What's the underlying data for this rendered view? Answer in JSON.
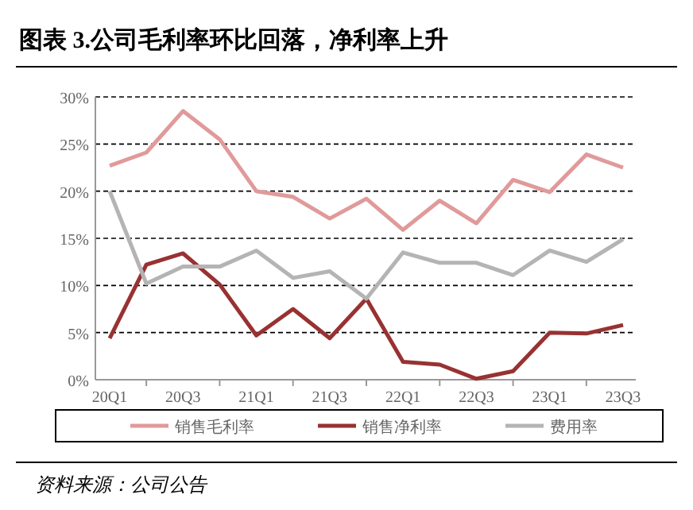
{
  "chart_data": {
    "type": "line",
    "title": "图表 3.公司毛利率环比回落，净利率上升",
    "categories": [
      "20Q1",
      null,
      "20Q3",
      null,
      "21Q1",
      null,
      "21Q3",
      null,
      "22Q1",
      null,
      "22Q3",
      null,
      "23Q1",
      null,
      "23Q3"
    ],
    "series": [
      {
        "name": "销售毛利率",
        "color": "#e09a9a",
        "values": [
          22.7,
          24.1,
          28.5,
          25.5,
          20.0,
          19.4,
          17.1,
          19.2,
          15.9,
          19.0,
          16.6,
          21.2,
          19.9,
          23.9,
          22.5
        ]
      },
      {
        "name": "销售净利率",
        "color": "#983232",
        "values": [
          4.4,
          12.2,
          13.4,
          10.1,
          4.7,
          7.5,
          4.4,
          8.6,
          1.9,
          1.6,
          0.1,
          0.9,
          5.0,
          4.9,
          5.8
        ]
      },
      {
        "name": "费用率",
        "color": "#b4b4b4",
        "values": [
          20.0,
          10.2,
          12.0,
          12.0,
          13.7,
          10.8,
          11.5,
          8.6,
          13.5,
          12.4,
          12.4,
          11.1,
          13.7,
          12.5,
          14.9
        ]
      }
    ],
    "ylim": [
      0,
      30
    ],
    "yticks": [
      {
        "value": 0,
        "label": "0%"
      },
      {
        "value": 5,
        "label": "5%"
      },
      {
        "value": 10,
        "label": "10%"
      },
      {
        "value": 15,
        "label": "15%"
      },
      {
        "value": 20,
        "label": "20%"
      },
      {
        "value": 25,
        "label": "25%"
      },
      {
        "value": 30,
        "label": "30%"
      }
    ],
    "grid": "y",
    "legend": "bottom",
    "line_style": "solid",
    "marker": "none",
    "annotations": [
      "资料来源：公司公告"
    ]
  }
}
